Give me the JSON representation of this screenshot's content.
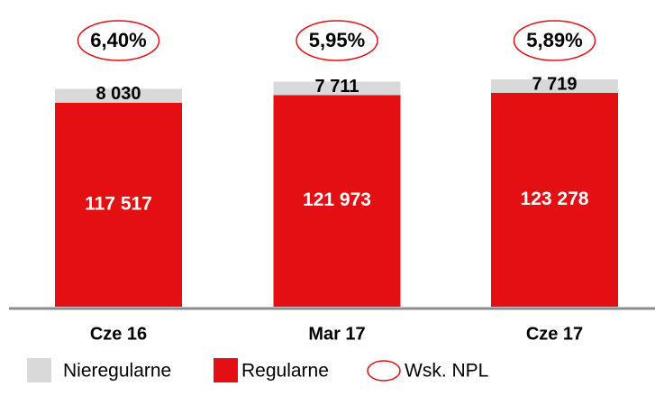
{
  "chart_data": {
    "type": "bar",
    "stacked": true,
    "categories": [
      "Cze 16",
      "Mar 17",
      "Cze 17"
    ],
    "series": [
      {
        "name": "Regularne",
        "color": "#e30f13",
        "values": [
          117517,
          121973,
          123278
        ],
        "value_labels": [
          "117 517",
          "121 973",
          "123 278"
        ]
      },
      {
        "name": "Nieregularne",
        "color": "#d9d9d9",
        "values": [
          8030,
          7711,
          7719
        ],
        "value_labels": [
          "8 030",
          "7 711",
          "7 719"
        ]
      }
    ],
    "npl": {
      "name": "Wsk. NPL",
      "color": "#e30f13",
      "values": [
        6.4,
        5.95,
        5.89
      ],
      "value_labels": [
        "6,40%",
        "5,95%",
        "5,89%"
      ]
    }
  }
}
